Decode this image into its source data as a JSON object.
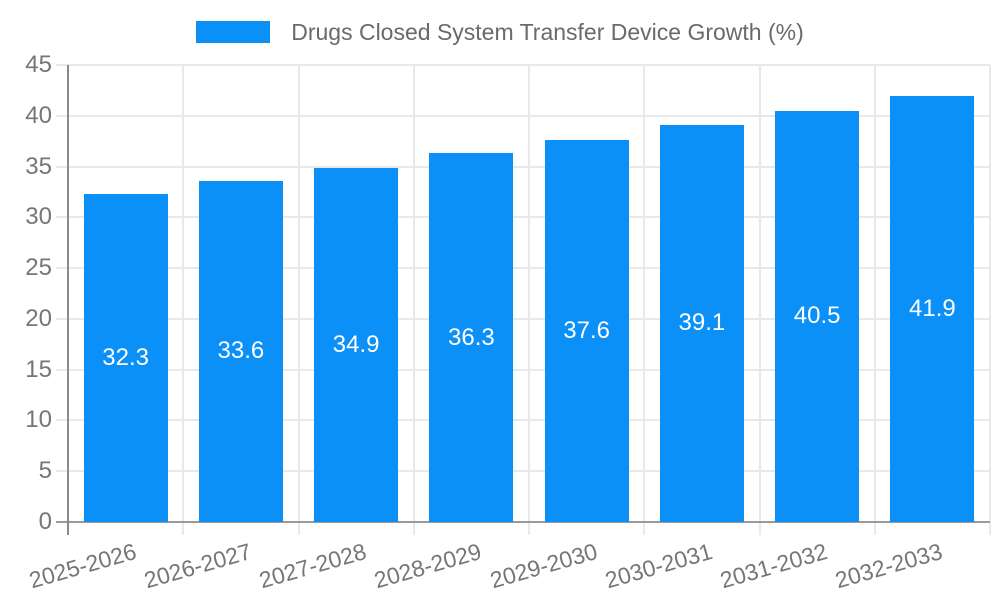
{
  "legend": {
    "label": "Drugs Closed System Transfer Device Growth (%)"
  },
  "colors": {
    "bar": "#0a90f6",
    "bar_label": "#ffffff",
    "grid": "#e9e9e9",
    "axis": "#8a8a8a",
    "baseline": "#9a9a9a",
    "tick_label": "#767676",
    "legend_text": "#6a6a6a",
    "background": "#ffffff"
  },
  "chart_data": {
    "type": "bar",
    "categories": [
      "2025-2026",
      "2026-2027",
      "2027-2028",
      "2028-2029",
      "2029-2030",
      "2030-2031",
      "2031-2032",
      "2032-2033"
    ],
    "series": [
      {
        "name": "Drugs Closed System Transfer Device Growth (%)",
        "values": [
          32.3,
          33.6,
          34.9,
          36.3,
          37.6,
          39.1,
          40.5,
          41.9
        ]
      }
    ],
    "title": "",
    "xlabel": "",
    "ylabel": "",
    "ylim": [
      0,
      45
    ],
    "ytick_step": 5,
    "grid": true,
    "legend_position": "top",
    "value_label_position": "inside-center",
    "x_label_rotation_deg": -16
  }
}
